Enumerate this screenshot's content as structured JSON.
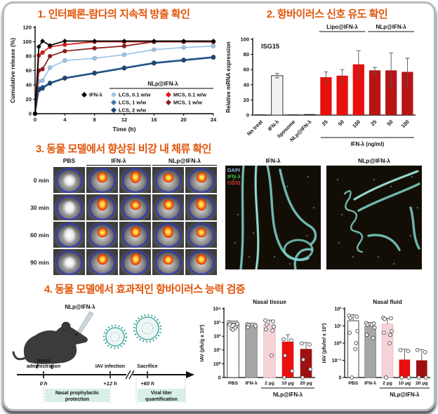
{
  "panel1": {
    "title": "1. 인터페론-람다의 지속적 방출 확인"
  },
  "panel2": {
    "title": "2. 항바이러스 신호 유도 확인"
  },
  "panel3": {
    "title": "3. 동물 모델에서 향상된 비강 내 체류 확인",
    "ivis": {
      "columns": [
        {
          "label": "PBS",
          "span": 1
        },
        {
          "label": "IFN-λ",
          "span": 2
        },
        {
          "label": "NLp@IFN-λ",
          "span": 2
        }
      ],
      "rows": [
        "0 min",
        "30 min",
        "60 min",
        "90 min"
      ]
    },
    "microscopy": {
      "panels": [
        "IFN-λ",
        "NLp@IFN-λ"
      ],
      "stains": [
        {
          "name": "DAPI",
          "color": "#8db4e2"
        },
        {
          "name": "IFN-λ",
          "color": "#3dbf4a"
        },
        {
          "name": "CD31",
          "color": "#e23c3c"
        }
      ]
    }
  },
  "panel4": {
    "title": "4. 동물 모델에서 효과적인 항바이러스 능력 검증",
    "schematic": {
      "label": "NLp@IFN-λ",
      "events": [
        {
          "name": "Nasal administration",
          "time": "0 h"
        },
        {
          "name": "IAV infection",
          "time": "+12 h"
        },
        {
          "name": "Sacrifice",
          "time": "+60 h"
        }
      ],
      "phases": [
        {
          "name": "Nasal prophylactic protection"
        },
        {
          "name": "Viral titer quantification"
        }
      ]
    }
  },
  "chart_data": [
    {
      "id": "release",
      "type": "line",
      "title": "",
      "xlabel": "Time (h)",
      "ylabel": "Cumulative release (%)",
      "xlim": [
        0,
        24
      ],
      "ylim": [
        0,
        120
      ],
      "xticks": [
        0,
        4,
        8,
        12,
        16,
        20,
        24
      ],
      "yticks": [
        0,
        20,
        40,
        60,
        80,
        100,
        120
      ],
      "x": [
        0,
        0.5,
        1,
        2,
        4,
        8,
        12,
        16,
        20,
        24
      ],
      "legend_header": "NLp@IFN-λ",
      "series": [
        {
          "name": "IFN-λ",
          "color": "#000000",
          "marker": "diamond",
          "values": [
            0,
            93,
            101,
            95,
            101,
            101,
            101,
            101,
            101,
            101
          ]
        },
        {
          "name": "LCS, 0.1 w/w",
          "color": "#9dc3e6",
          "values": [
            0,
            45,
            46,
            64,
            74,
            77,
            82,
            89,
            92,
            94
          ]
        },
        {
          "name": "LCS, 1 w/w",
          "color": "#3a78b4",
          "values": [
            0,
            35,
            37,
            43,
            50,
            57,
            64,
            71,
            75,
            79
          ]
        },
        {
          "name": "LCS, 2 w/w",
          "color": "#1f4470",
          "values": [
            0,
            33,
            35,
            42,
            49,
            56,
            63,
            70,
            74,
            78
          ]
        },
        {
          "name": "MCS, 0.1 w/w",
          "color": "#d81a14",
          "values": [
            0,
            81,
            85,
            93,
            96,
            100,
            100,
            100,
            100,
            100
          ]
        },
        {
          "name": "MCS, 1 w/w",
          "color": "#8f1d1d",
          "values": [
            0,
            60,
            62,
            80,
            87,
            91,
            94,
            100,
            100,
            100
          ]
        }
      ]
    },
    {
      "id": "isg15",
      "type": "bar",
      "title": "ISG15",
      "ylabel": "Relative mRNA expression",
      "ylim": [
        0,
        100
      ],
      "yticks": [
        0,
        20,
        40,
        60,
        80,
        100
      ],
      "categories": [
        "No treat",
        "IFN-λ",
        "liposome",
        "NLp@IFN-λ",
        "25",
        "50",
        "100",
        "25",
        "50",
        "100"
      ],
      "values": [
        0.8,
        52,
        0.8,
        1.2,
        50,
        52,
        67,
        59,
        59,
        57
      ],
      "errors": [
        0.2,
        3,
        0.2,
        0.3,
        7,
        8,
        18,
        4,
        23,
        18
      ],
      "colors": [
        "#1a1a1a",
        "#f2f2f2",
        "#1a1a1a",
        "#1a1a1a",
        "#e8100c",
        "#e8100c",
        "#e8100c",
        "#b81414",
        "#b81414",
        "#b81414"
      ],
      "group_headers": [
        {
          "label": "Lipo@IFN-λ",
          "from": 4,
          "to": 6
        },
        {
          "label": "NLp@IFN-λ",
          "from": 7,
          "to": 9
        }
      ],
      "axis_group": {
        "label": "IFN-λ (ng/ml)",
        "from": 4,
        "to": 9
      }
    },
    {
      "id": "nasal_tissue",
      "type": "bar",
      "title": "Nasal tissue",
      "ylabel": "IAV (pfu/g x 10³)",
      "scale": "log",
      "log_min": 0,
      "log_max": 4,
      "ytick_labels": [
        "0",
        "10⁰",
        "10¹",
        "10²",
        "10³",
        "10⁴"
      ],
      "categories": [
        "PBS",
        "IFN-λ",
        "2 µg",
        "10 µg",
        "20 µg"
      ],
      "values": [
        800,
        550,
        700,
        40,
        12
      ],
      "err_hi": [
        1300,
        900,
        1500,
        130,
        35
      ],
      "colors": [
        "#ffffff",
        "#a6a6a6",
        "#f6d3d8",
        "#ea1010",
        "#9c1212"
      ],
      "strokes": [
        "#333333",
        "#808080",
        "#eab9c0",
        "none",
        "none"
      ],
      "points": [
        [
          1100,
          1000,
          900,
          800,
          700,
          500,
          400,
          350,
          300
        ],
        [
          750,
          700,
          650,
          550,
          450
        ],
        [
          1400,
          1200,
          700,
          500,
          320,
          260,
          4
        ],
        [
          60,
          50,
          4,
          0.3,
          0
        ],
        [
          30,
          25,
          2,
          0.4,
          0
        ]
      ],
      "group": {
        "label": "NLp@IFN-λ",
        "from": 2,
        "to": 4
      }
    },
    {
      "id": "nasal_fluid",
      "type": "bar",
      "title": "Nasal fluid",
      "ylabel": "IAV (pfu/ml x 10³)",
      "scale": "log",
      "log_min": -1,
      "log_max": 2,
      "ytick_labels": [
        "0",
        "10⁻¹",
        "10⁰",
        "10¹",
        "10²"
      ],
      "categories": [
        "PBS",
        "IFN-λ",
        "2 µg",
        "10 µg",
        "20 µg"
      ],
      "values": [
        20,
        10,
        13,
        0.11,
        0.1
      ],
      "err_hi": [
        45,
        16,
        28,
        0.45,
        0.42
      ],
      "colors": [
        "#ffffff",
        "#a6a6a6",
        "#f6d3d8",
        "#ea1010",
        "#9c1212"
      ],
      "strokes": [
        "#333333",
        "#808080",
        "#eab9c0",
        "none",
        "none"
      ],
      "points": [
        [
          40,
          35,
          30,
          5,
          4,
          1,
          0.45,
          0
        ],
        [
          15,
          14,
          12,
          8,
          3,
          2
        ],
        [
          30,
          28,
          25,
          5,
          4,
          3,
          1,
          0
        ],
        [
          0.4,
          0.35,
          0,
          0
        ],
        [
          0.4,
          0.3,
          0,
          0
        ]
      ],
      "group": {
        "label": "NLp@IFN-λ",
        "from": 2,
        "to": 4
      }
    }
  ],
  "accent_color": "#e25408"
}
